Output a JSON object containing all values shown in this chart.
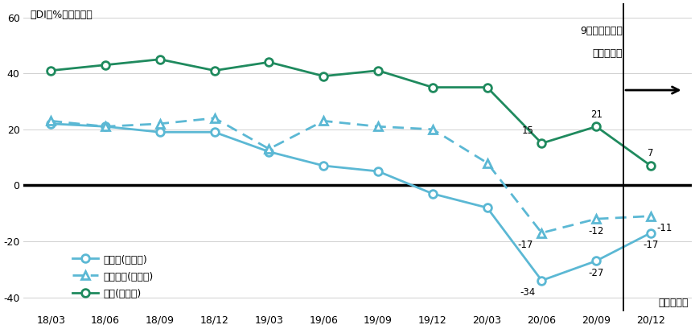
{
  "x_labels": [
    "18/03",
    "18/06",
    "18/09",
    "18/12",
    "19/03",
    "19/06",
    "19/09",
    "19/12",
    "20/03",
    "20/06",
    "20/09",
    "20/12"
  ],
  "manufacturing": [
    22,
    21,
    19,
    19,
    12,
    7,
    5,
    -3,
    -8,
    -34,
    -27,
    -17
  ],
  "non_manufacturing": [
    23,
    21,
    22,
    24,
    13,
    23,
    21,
    20,
    8,
    -17,
    -12,
    -11
  ],
  "construction": [
    41,
    43,
    45,
    41,
    44,
    39,
    41,
    35,
    35,
    15,
    21,
    7
  ],
  "manufacturing_color": "#5BB8D4",
  "non_manufacturing_color": "#5BB8D4",
  "construction_color": "#1F8A5E",
  "ylim": [
    -45,
    65
  ],
  "yticks": [
    -40,
    -20,
    0,
    20,
    40,
    60
  ],
  "forecast_label_line1": "9月調査による",
  "forecast_label_line2": "先行き判断",
  "ylabel": "（DI、%ポイント）",
  "xlabel": "（四半期）",
  "legend_manufacturing": "製造業(大企業)",
  "legend_non_manufacturing": "非製造業(大企業)",
  "legend_construction": "建設(大企業)",
  "ann_mfg": {
    "9": -34,
    "10": -27,
    "11": -17
  },
  "ann_non_mfg": {
    "9": -17,
    "10": -12,
    "11": -11
  },
  "ann_const": {
    "9": 15,
    "10": 21,
    "11": 7
  },
  "zero_line_color": "#000000",
  "grid_color": "#d0d0d0",
  "background_color": "#ffffff"
}
